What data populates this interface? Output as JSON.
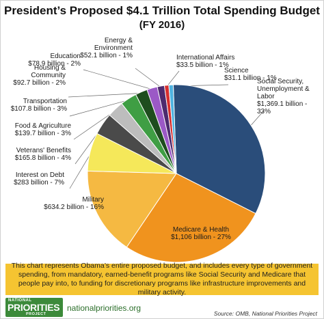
{
  "chart_data": {
    "type": "pie",
    "title": "President’s Proposed $4.1 Trillion Total Spending Budget",
    "subtitle": "(FY 2016)",
    "slices": [
      {
        "name": "Social Security, Unemployment & Labor",
        "label_lines": [
          "Social Security,",
          "Unemployment &",
          "Labor",
          "$1,369.1 billion -",
          "33%"
        ],
        "value": 33,
        "color": "#2a4d7a"
      },
      {
        "name": "Medicare & Health",
        "label_lines": [
          "Medicare & Health",
          "$1,106 billion - 27%"
        ],
        "value": 27,
        "color": "#f0931e"
      },
      {
        "name": "Military",
        "label_lines": [
          "Military",
          "$634.2 billion - 16%"
        ],
        "value": 16,
        "color": "#f5b942"
      },
      {
        "name": "Interest on Debt",
        "label_lines": [
          "Interest on Debt",
          "$283 billion - 7%"
        ],
        "value": 7,
        "color": "#f5e85a"
      },
      {
        "name": "Veterans' Benefits",
        "label_lines": [
          "Veterans' Benefits",
          "$165.8 billion - 4%"
        ],
        "value": 4,
        "color": "#4a4a4a"
      },
      {
        "name": "Food & Agriculture",
        "label_lines": [
          "Food & Agriculture",
          "$139.7 billion - 3%"
        ],
        "value": 3,
        "color": "#bdbdbd"
      },
      {
        "name": "Transportation",
        "label_lines": [
          "Transportation",
          "$107.8 billion - 3%"
        ],
        "value": 3,
        "color": "#3f9e44"
      },
      {
        "name": "Housing & Community",
        "label_lines": [
          "Housing &",
          "Community",
          "$92.7 billion - 2%"
        ],
        "value": 2.2,
        "color": "#1e4d1e"
      },
      {
        "name": "Education",
        "label_lines": [
          "Education",
          "$78.9 billion - 2%"
        ],
        "value": 1.9,
        "color": "#9b59c6"
      },
      {
        "name": "Energy & Environment",
        "label_lines": [
          "Energy &",
          "Environment",
          "$52.1 billion - 1%"
        ],
        "value": 1.3,
        "color": "#4d2a6e"
      },
      {
        "name": "International Affairs",
        "label_lines": [
          "International Affairs",
          "$33.5 billion - 1%"
        ],
        "value": 0.8,
        "color": "#d62f2f"
      },
      {
        "name": "Science",
        "label_lines": [
          "Science",
          "$31.1 billion - 1%"
        ],
        "value": 0.8,
        "color": "#4fb3e0"
      }
    ]
  },
  "note": "This chart represents Obama’s entire proposed budget, and includes every type of government spending, from mandatory, earned-benefit programs like Social Security and Medicare that people pay into, to funding for discretionary programs like infrastructure improvements and military activity.",
  "footer": {
    "logo_top": "NATIONAL",
    "logo_main": "PRIORITIES",
    "logo_bottom": "PROJECT",
    "url": "nationalpriorities.org",
    "source": "Source: OMB, National Priorities Project"
  }
}
